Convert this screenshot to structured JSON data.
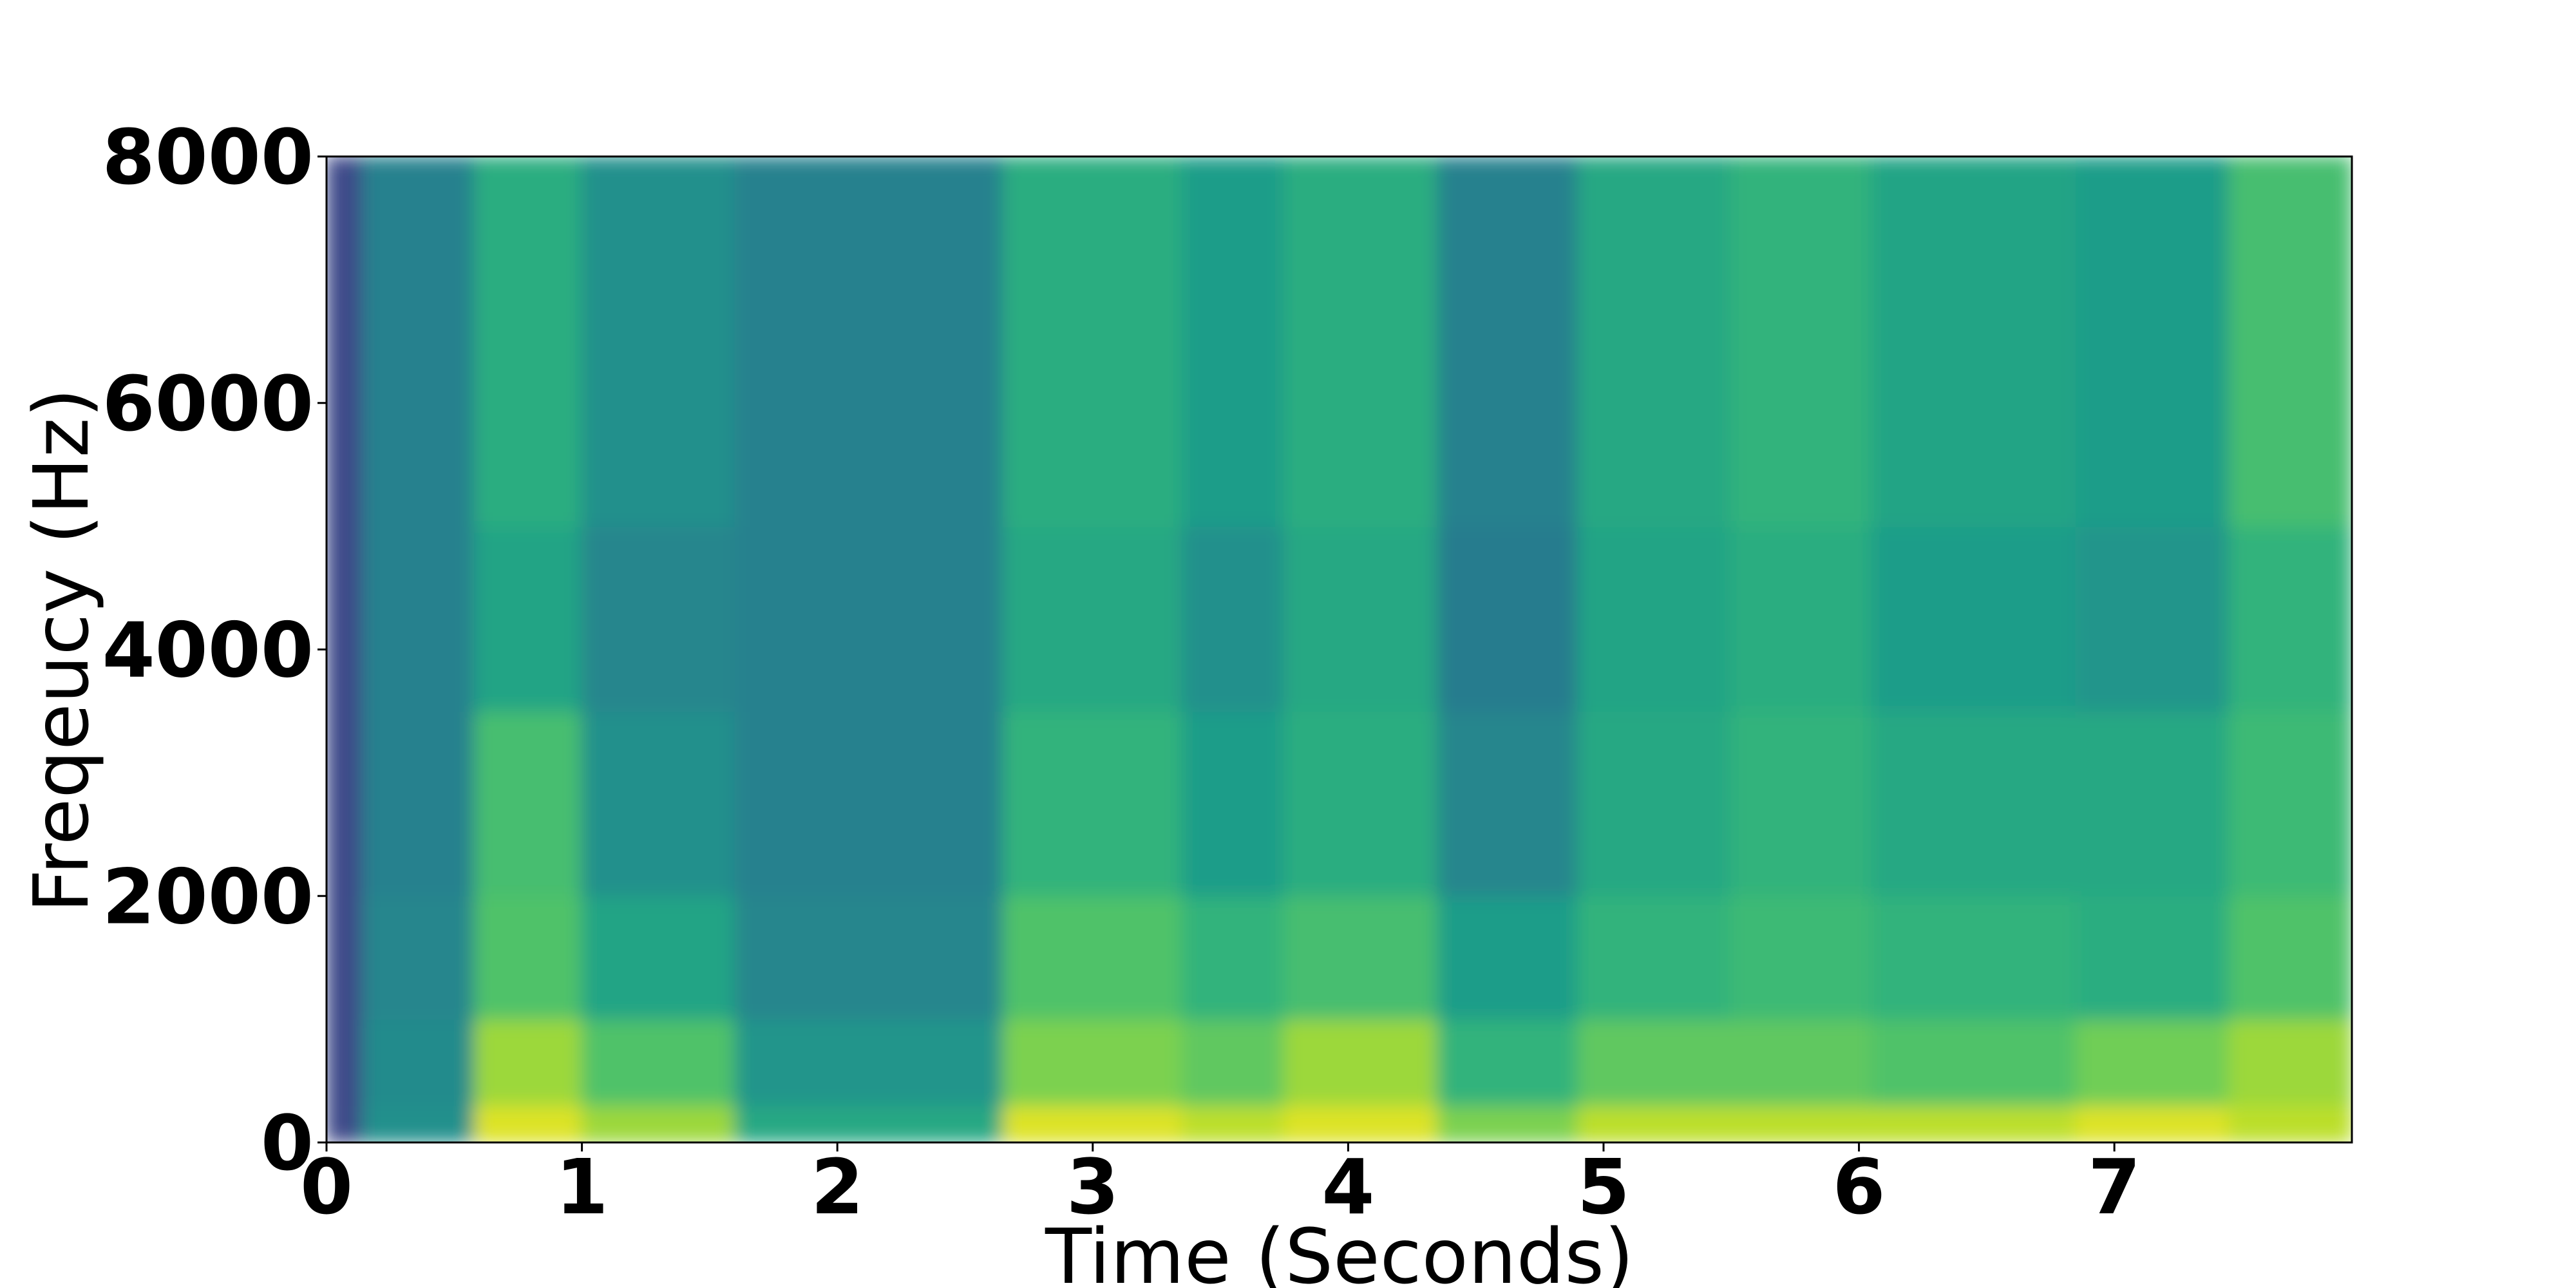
{
  "chart_data": {
    "type": "spectrogram",
    "xlabel": "Time (Seconds)",
    "ylabel": "Freqeucy (Hz)",
    "xlim": [
      0,
      7.93
    ],
    "ylim": [
      0,
      8000
    ],
    "xticks": [
      0,
      1,
      2,
      3,
      4,
      5,
      6,
      7
    ],
    "yticks": [
      0,
      2000,
      4000,
      6000,
      8000
    ],
    "colormap": [
      "#440154",
      "#482878",
      "#3e4989",
      "#31688e",
      "#26828e",
      "#1f9e89",
      "#35b779",
      "#6ece58",
      "#b5de2b",
      "#fde725"
    ],
    "time_edges": [
      0,
      0.14,
      0.58,
      1.0,
      1.6,
      2.65,
      3.35,
      3.75,
      4.35,
      4.9,
      5.5,
      6.05,
      6.85,
      7.45,
      7.93
    ],
    "freq_edges": [
      0,
      300,
      1000,
      2000,
      3500,
      5000,
      8000
    ],
    "intensity": [
      [
        0.22,
        0.22,
        0.22,
        0.22,
        0.22,
        0.22
      ],
      [
        0.5,
        0.48,
        0.46,
        0.44,
        0.44,
        0.44
      ],
      [
        0.95,
        0.85,
        0.72,
        0.7,
        0.58,
        0.62
      ],
      [
        0.85,
        0.72,
        0.58,
        0.5,
        0.46,
        0.5
      ],
      [
        0.6,
        0.52,
        0.46,
        0.44,
        0.44,
        0.44
      ],
      [
        0.95,
        0.8,
        0.72,
        0.65,
        0.6,
        0.62
      ],
      [
        0.9,
        0.75,
        0.65,
        0.55,
        0.5,
        0.55
      ],
      [
        0.95,
        0.85,
        0.7,
        0.62,
        0.6,
        0.62
      ],
      [
        0.8,
        0.65,
        0.55,
        0.46,
        0.42,
        0.44
      ],
      [
        0.9,
        0.75,
        0.65,
        0.6,
        0.58,
        0.6
      ],
      [
        0.9,
        0.75,
        0.68,
        0.65,
        0.62,
        0.65
      ],
      [
        0.9,
        0.72,
        0.65,
        0.6,
        0.55,
        0.58
      ],
      [
        0.95,
        0.78,
        0.62,
        0.6,
        0.52,
        0.55
      ],
      [
        0.9,
        0.85,
        0.72,
        0.68,
        0.65,
        0.7
      ]
    ]
  }
}
